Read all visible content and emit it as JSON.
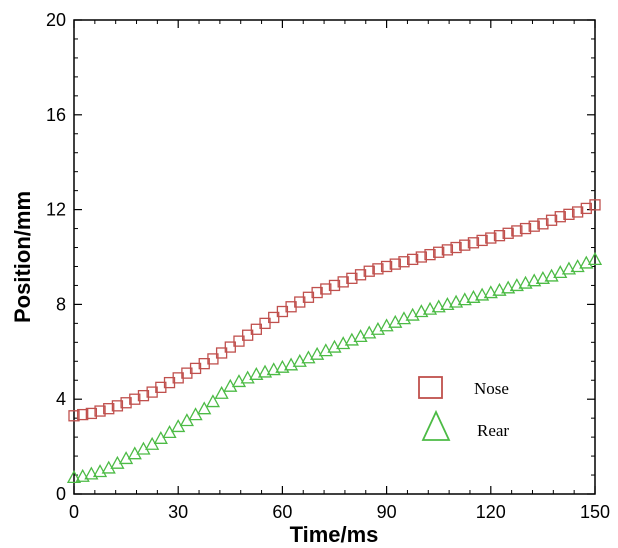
{
  "chart_data": {
    "type": "scatter",
    "title": "",
    "xlabel": "Time/ms",
    "ylabel": "Position/mm",
    "xlim": [
      0,
      150
    ],
    "ylim": [
      0,
      20
    ],
    "xticks": [
      0,
      30,
      60,
      90,
      120,
      150
    ],
    "yticks": [
      0,
      4,
      8,
      12,
      16,
      20
    ],
    "xtick_labels": [
      "0",
      "30",
      "60",
      "90",
      "120",
      "150"
    ],
    "ytick_labels": [
      "0",
      "4",
      "8",
      "12",
      "16",
      "20"
    ],
    "grid": false,
    "legend_position": "lower-right inside",
    "series": [
      {
        "name": "Nose",
        "marker": "square",
        "color": "#c0504d",
        "x": [
          0,
          2.5,
          5,
          7.5,
          10,
          12.5,
          15,
          17.5,
          20,
          22.5,
          25,
          27.5,
          30,
          32.5,
          35,
          37.5,
          40,
          42.5,
          45,
          47.5,
          50,
          52.5,
          55,
          57.5,
          60,
          62.5,
          65,
          67.5,
          70,
          72.5,
          75,
          77.5,
          80,
          82.5,
          85,
          87.5,
          90,
          92.5,
          95,
          97.5,
          100,
          102.5,
          105,
          107.5,
          110,
          112.5,
          115,
          117.5,
          120,
          122.5,
          125,
          127.5,
          130,
          132.5,
          135,
          137.5,
          140,
          142.5,
          145,
          147.5,
          150
        ],
        "y": [
          3.3,
          3.35,
          3.4,
          3.5,
          3.6,
          3.72,
          3.85,
          4.0,
          4.15,
          4.3,
          4.5,
          4.7,
          4.9,
          5.1,
          5.3,
          5.5,
          5.7,
          5.95,
          6.2,
          6.45,
          6.7,
          6.95,
          7.2,
          7.45,
          7.7,
          7.9,
          8.1,
          8.3,
          8.5,
          8.65,
          8.8,
          8.95,
          9.1,
          9.25,
          9.4,
          9.5,
          9.6,
          9.7,
          9.8,
          9.9,
          10.0,
          10.1,
          10.2,
          10.3,
          10.4,
          10.5,
          10.6,
          10.7,
          10.8,
          10.9,
          11.0,
          11.1,
          11.2,
          11.3,
          11.4,
          11.55,
          11.7,
          11.8,
          11.9,
          12.05,
          12.2
        ]
      },
      {
        "name": "Rear",
        "marker": "triangle",
        "color": "#4cbb45",
        "x": [
          0,
          2.5,
          5,
          7.5,
          10,
          12.5,
          15,
          17.5,
          20,
          22.5,
          25,
          27.5,
          30,
          32.5,
          35,
          37.5,
          40,
          42.5,
          45,
          47.5,
          50,
          52.5,
          55,
          57.5,
          60,
          62.5,
          65,
          67.5,
          70,
          72.5,
          75,
          77.5,
          80,
          82.5,
          85,
          87.5,
          90,
          92.5,
          95,
          97.5,
          100,
          102.5,
          105,
          107.5,
          110,
          112.5,
          115,
          117.5,
          120,
          122.5,
          125,
          127.5,
          130,
          132.5,
          135,
          137.5,
          140,
          142.5,
          145,
          147.5,
          150
        ],
        "y": [
          0.7,
          0.75,
          0.85,
          0.95,
          1.1,
          1.3,
          1.5,
          1.7,
          1.9,
          2.1,
          2.35,
          2.6,
          2.85,
          3.1,
          3.35,
          3.6,
          3.9,
          4.25,
          4.55,
          4.75,
          4.9,
          5.05,
          5.15,
          5.25,
          5.35,
          5.45,
          5.6,
          5.75,
          5.9,
          6.05,
          6.2,
          6.35,
          6.5,
          6.65,
          6.8,
          6.95,
          7.1,
          7.25,
          7.4,
          7.55,
          7.7,
          7.8,
          7.9,
          8.0,
          8.1,
          8.2,
          8.3,
          8.4,
          8.5,
          8.6,
          8.7,
          8.8,
          8.9,
          9.0,
          9.1,
          9.2,
          9.35,
          9.5,
          9.6,
          9.75,
          9.9
        ]
      }
    ]
  }
}
